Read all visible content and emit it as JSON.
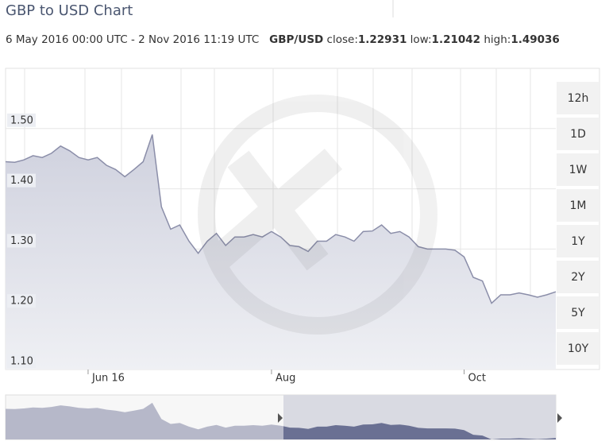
{
  "header": {
    "title": "GBP to USD Chart",
    "range": "6 May 2016 00:00 UTC - 2 Nov 2016 11:19 UTC",
    "pair": "GBP/USD",
    "close_label": "close:",
    "close": 1.22931,
    "low_label": "low:",
    "low": 1.21042,
    "high_label": "high:",
    "high": 1.49036
  },
  "buttons": [
    "12h",
    "1D",
    "1W",
    "1M",
    "1Y",
    "2Y",
    "5Y",
    "10Y"
  ],
  "chart_data": {
    "type": "area",
    "categories": [
      null,
      null,
      null,
      null,
      null,
      null,
      null,
      null,
      null,
      "Jun 16",
      null,
      null,
      null,
      null,
      null,
      null,
      null,
      null,
      null,
      null,
      null,
      null,
      null,
      null,
      null,
      null,
      null,
      null,
      null,
      "Aug",
      null,
      null,
      null,
      null,
      null,
      null,
      null,
      null,
      null,
      null,
      null,
      null,
      null,
      null,
      null,
      null,
      null,
      null,
      null,
      null,
      "Oct",
      null,
      null,
      null,
      null,
      null,
      null,
      null,
      null,
      null,
      null
    ],
    "values": [
      1.445,
      1.444,
      1.448,
      1.455,
      1.452,
      1.459,
      1.471,
      1.463,
      1.452,
      1.448,
      1.452,
      1.439,
      1.432,
      1.42,
      1.432,
      1.445,
      1.49,
      1.37,
      1.333,
      1.34,
      1.313,
      1.293,
      1.313,
      1.326,
      1.306,
      1.32,
      1.32,
      1.324,
      1.32,
      1.329,
      1.32,
      1.306,
      1.304,
      1.296,
      1.313,
      1.313,
      1.324,
      1.32,
      1.313,
      1.329,
      1.33,
      1.34,
      1.326,
      1.329,
      1.32,
      1.304,
      1.3,
      1.3,
      1.3,
      1.298,
      1.287,
      1.253,
      1.247,
      1.21,
      1.224,
      1.224,
      1.227,
      1.224,
      1.22,
      1.224,
      1.229
    ],
    "color": "#8b8ea9",
    "fill_color": "#d2d4e0",
    "ylim": [
      1.1,
      1.6
    ],
    "yticks": [
      {
        "value": 1.1,
        "label": "1.10"
      },
      {
        "value": 1.2,
        "label": "1.20"
      },
      {
        "value": 1.3,
        "label": "1.30"
      },
      {
        "value": 1.4,
        "label": "1.40"
      },
      {
        "value": 1.5,
        "label": "1.50"
      }
    ],
    "grid": true
  }
}
